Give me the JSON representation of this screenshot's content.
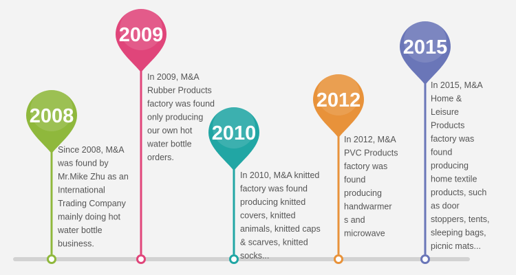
{
  "milestones": [
    {
      "year": "2008",
      "color": "#8fb83c",
      "lines": [
        "Since 2008, M&A",
        "was found by",
        "Mr.Mike Zhu as an",
        "International",
        "Trading Company",
        "mainly doing hot",
        "water bottle",
        "business."
      ]
    },
    {
      "year": "2009",
      "color": "#e0457a",
      "lines": [
        "In 2009, M&A",
        "Rubber Products",
        "factory was found",
        "only producing",
        "our own hot",
        "water bottle",
        "orders."
      ]
    },
    {
      "year": "2010",
      "color": "#21a6a4",
      "lines": [
        "In 2010, M&A knitted",
        "factory was found",
        "producing knitted",
        "covers, knitted",
        "animals, knitted caps",
        "& scarves, knitted",
        "socks..."
      ]
    },
    {
      "year": "2012",
      "color": "#e8923a",
      "lines": [
        "In 2012, M&A",
        "PVC Products",
        "factory was",
        "found",
        "producing",
        "handwarmer",
        "s and",
        "microwave"
      ]
    },
    {
      "year": "2015",
      "color": "#6a76b8",
      "lines": [
        "In 2015, M&A",
        "Home &",
        "Leisure",
        "Products",
        "factory was",
        "found",
        "producing",
        "home textile",
        "products, such",
        "as door",
        "stoppers, tents,",
        "sleeping bags,",
        "picnic mats..."
      ]
    }
  ]
}
